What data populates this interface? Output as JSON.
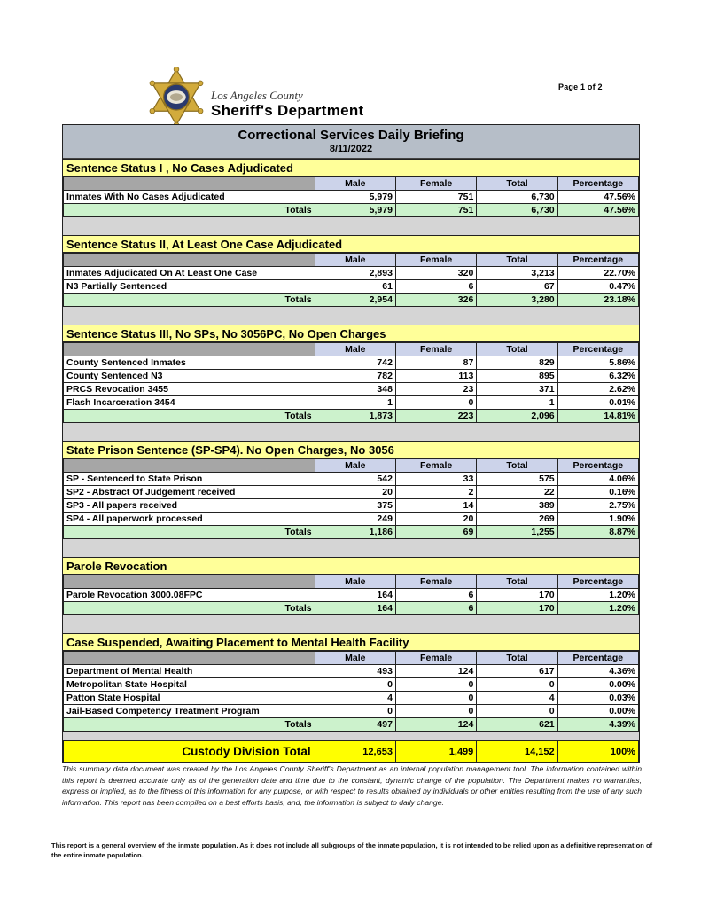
{
  "page": {
    "page_indicator": "Page 1 of 2",
    "logo": {
      "county_line": "Los Angeles County",
      "department_line": "Sheriff's Department"
    }
  },
  "report": {
    "title": "Correctional Services Daily Briefing",
    "date": "8/11/2022",
    "column_headers": [
      "Male",
      "Female",
      "Total",
      "Percentage"
    ],
    "totals_label": "Totals",
    "sections": [
      {
        "heading": "Sentence Status I , No Cases Adjudicated",
        "rows": [
          {
            "label": "Inmates With No Cases Adjudicated",
            "values": [
              "5,979",
              "751",
              "6,730",
              "47.56%"
            ]
          }
        ],
        "totals": [
          "5,979",
          "751",
          "6,730",
          "47.56%"
        ]
      },
      {
        "heading": "Sentence Status II, At Least One Case Adjudicated",
        "rows": [
          {
            "label": "Inmates Adjudicated On At Least One Case",
            "values": [
              "2,893",
              "320",
              "3,213",
              "22.70%"
            ]
          },
          {
            "label": "N3 Partially Sentenced",
            "values": [
              "61",
              "6",
              "67",
              "0.47%"
            ]
          }
        ],
        "totals": [
          "2,954",
          "326",
          "3,280",
          "23.18%"
        ]
      },
      {
        "heading": "Sentence Status III, No SPs, No 3056PC, No Open Charges",
        "rows": [
          {
            "label": "County Sentenced Inmates",
            "values": [
              "742",
              "87",
              "829",
              "5.86%"
            ]
          },
          {
            "label": "County Sentenced N3",
            "values": [
              "782",
              "113",
              "895",
              "6.32%"
            ]
          },
          {
            "label": "PRCS Revocation 3455",
            "values": [
              "348",
              "23",
              "371",
              "2.62%"
            ]
          },
          {
            "label": "Flash Incarceration 3454",
            "values": [
              "1",
              "0",
              "1",
              "0.01%"
            ]
          }
        ],
        "totals": [
          "1,873",
          "223",
          "2,096",
          "14.81%"
        ]
      },
      {
        "heading": "State Prison Sentence (SP-SP4). No Open Charges, No 3056",
        "rows": [
          {
            "label": "SP - Sentenced to State Prison",
            "values": [
              "542",
              "33",
              "575",
              "4.06%"
            ]
          },
          {
            "label": "SP2 - Abstract Of Judgement received",
            "values": [
              "20",
              "2",
              "22",
              "0.16%"
            ]
          },
          {
            "label": "SP3 - All papers received",
            "values": [
              "375",
              "14",
              "389",
              "2.75%"
            ]
          },
          {
            "label": "SP4 - All paperwork processed",
            "values": [
              "249",
              "20",
              "269",
              "1.90%"
            ]
          }
        ],
        "totals": [
          "1,186",
          "69",
          "1,255",
          "8.87%"
        ]
      },
      {
        "heading": "Parole Revocation",
        "rows": [
          {
            "label": "Parole Revocation 3000.08FPC",
            "values": [
              "164",
              "6",
              "170",
              "1.20%"
            ]
          }
        ],
        "totals": [
          "164",
          "6",
          "170",
          "1.20%"
        ]
      },
      {
        "heading": "Case Suspended, Awaiting Placement to Mental Health Facility",
        "rows": [
          {
            "label": "Department of Mental Health",
            "values": [
              "493",
              "124",
              "617",
              "4.36%"
            ]
          },
          {
            "label": "Metropolitan State Hospital",
            "values": [
              "0",
              "0",
              "0",
              "0.00%"
            ]
          },
          {
            "label": "Patton State Hospital",
            "values": [
              "4",
              "0",
              "4",
              "0.03%"
            ]
          },
          {
            "label": "Jail-Based Competency Treatment Program",
            "values": [
              "0",
              "0",
              "0",
              "0.00%"
            ]
          }
        ],
        "totals": [
          "497",
          "124",
          "621",
          "4.39%"
        ]
      }
    ],
    "grand_total": {
      "label": "Custody Division Total",
      "values": [
        "12,653",
        "1,499",
        "14,152",
        "100%"
      ]
    }
  },
  "footnotes": {
    "disclaimer": "This summary data document was created by the Los Angeles County Sheriff's Department as an internal population management tool.  The information contained within this report is deemed accurate only as of the generation date and time due to the constant, dynamic change of the population.  The Department makes no warranties, express or implied, as to the fitness of this information for any purpose, or with respect to results obtained by individuals or other entities resulting from the use of any such information.  This report has been compiled on a best efforts basis, and, the information is subject to daily change.",
    "overview": "This report is a general overview of the inmate population.  As it does not include all subgroups of the inmate population, it is not intended to be relied upon as a definitive representation of the entire inmate population."
  },
  "colors": {
    "section_heading_bg": "#ffff99",
    "column_header_bg": "#ccd3ea",
    "row_label_header_bg": "#a6a6a6",
    "totals_row_bg": "#ccf2cc",
    "grand_total_bg": "#ffff00",
    "title_bar_bg": "#b6bec8",
    "report_spacer_bg": "#d5d5d5",
    "badge_gold": "#d2ab3c",
    "badge_navy": "#2a3a6e"
  }
}
